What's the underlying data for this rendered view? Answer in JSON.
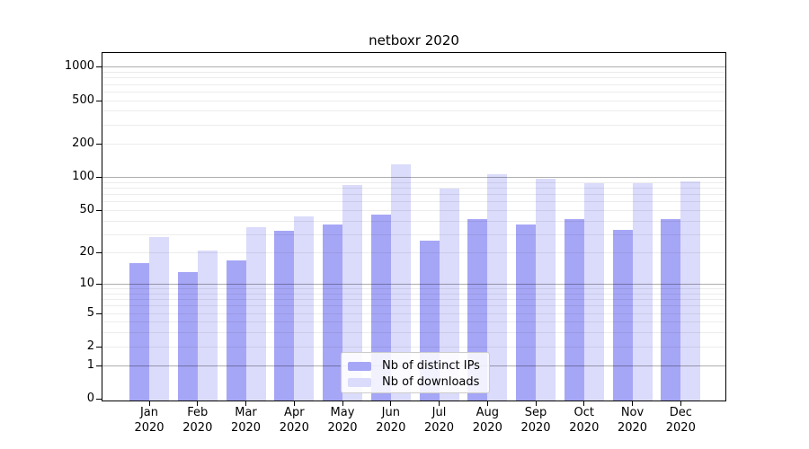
{
  "title": "netboxr 2020",
  "chart_data": {
    "type": "bar",
    "title": "netboxr 2020",
    "x": {
      "months": [
        "Jan",
        "Feb",
        "Mar",
        "Apr",
        "May",
        "Jun",
        "Jul",
        "Aug",
        "Sep",
        "Oct",
        "Nov",
        "Dec"
      ],
      "year": "2020"
    },
    "series": [
      {
        "name": "Nb of distinct IPs",
        "color": "#a6a6f6",
        "values": [
          16,
          13,
          17,
          32,
          37,
          45,
          26,
          41,
          37,
          41,
          33,
          41
        ]
      },
      {
        "name": "Nb of downloads",
        "color": "#dbdbfb",
        "values": [
          28,
          21,
          35,
          44,
          85,
          130,
          78,
          107,
          96,
          88,
          88,
          92
        ]
      }
    ],
    "y_axis": {
      "scale": "log1p",
      "ticks": [
        0,
        1,
        2,
        5,
        10,
        20,
        50,
        100,
        200,
        500,
        1000
      ],
      "major_gridlines": [
        1,
        10,
        100,
        1000
      ],
      "minor_multiples": [
        2,
        3,
        4,
        5,
        6,
        7,
        8,
        9
      ],
      "top_value": 1330
    },
    "legend_position": "bottom-center",
    "grid": true
  },
  "colors": {
    "background": "#ffffff",
    "axis": "#000000",
    "major_grid": "rgba(0,0,0,0.32)",
    "minor_grid": "rgba(0,0,0,0.075)",
    "legend_border": "#cccccc"
  }
}
